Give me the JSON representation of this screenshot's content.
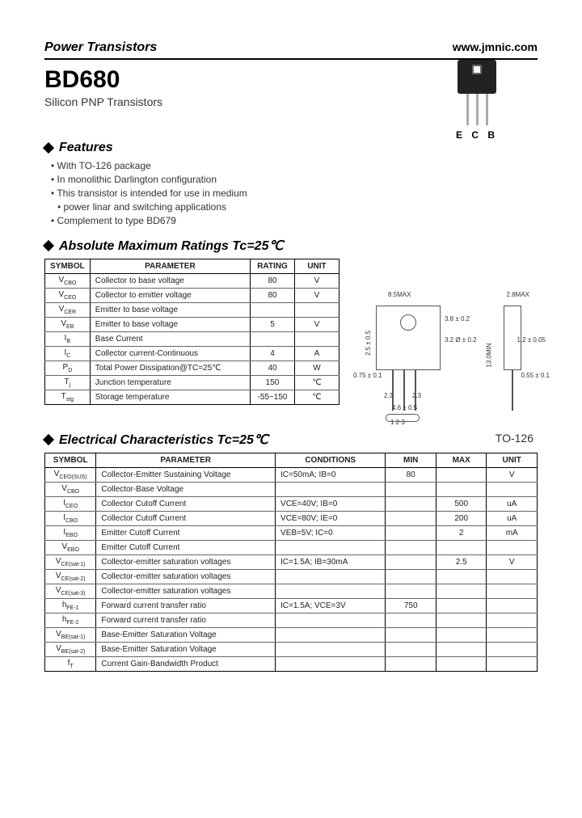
{
  "header": {
    "left": "Power Transistors",
    "right": "www.jmnic.com"
  },
  "title": {
    "part": "BD680",
    "sub": "Silicon PNP Transistors"
  },
  "package": {
    "pin_label": "E C B",
    "name": "TO-126"
  },
  "dimensions": {
    "top_front": "8.5MAX",
    "top_side": "2.8MAX",
    "h1": "3.8 ± 0.2",
    "hole": "3.2 Ø ± 0.2",
    "left": "2.5 ± 0.5",
    "len": "13.0MIN",
    "w1": "0.75 ± 0.1",
    "w2": "1.2 ± 0.05",
    "w3": "0.55 ± 0.1",
    "pitch1": "2.3",
    "pitch2": "2.3",
    "base": "4.6 ± 0.5",
    "pins": "1  2  3",
    "side_h": "1.2MAX"
  },
  "sections": {
    "features": "Features",
    "amr": "Absolute Maximum Ratings Tc=25℃",
    "ec": "Electrical Characteristics Tc=25℃"
  },
  "features": [
    "With TO-126 package",
    "In monolithic Darlington configuration",
    "This transistor is intended for use in medium",
    "power linar and switching applications",
    "Complement to type BD679"
  ],
  "amr": {
    "headers": [
      "SYMBOL",
      "PARAMETER",
      "RATING",
      "UNIT"
    ],
    "rows": [
      {
        "sym": "V",
        "sub": "CBO",
        "param": "Collector to base voltage",
        "rating": "80",
        "unit": "V"
      },
      {
        "sym": "V",
        "sub": "CEO",
        "param": "Collector to emitter voltage",
        "rating": "80",
        "unit": "V"
      },
      {
        "sym": "V",
        "sub": "CER",
        "param": "Emitter to base voltage",
        "rating": "",
        "unit": ""
      },
      {
        "sym": "V",
        "sub": "EB",
        "param": "Emitter to base voltage",
        "rating": "5",
        "unit": "V"
      },
      {
        "sym": "I",
        "sub": "B",
        "param": "Base Current",
        "rating": "",
        "unit": ""
      },
      {
        "sym": "I",
        "sub": "C",
        "param": "Collector current-Continuous",
        "rating": "4",
        "unit": "A"
      },
      {
        "sym": "P",
        "sub": "D",
        "param": "Total Power Dissipation@TC=25℃",
        "rating": "40",
        "unit": "W"
      },
      {
        "sym": "T",
        "sub": "j",
        "param": "Junction temperature",
        "rating": "150",
        "unit": "℃"
      },
      {
        "sym": "T",
        "sub": "stg",
        "param": "Storage temperature",
        "rating": "-55~150",
        "unit": "℃"
      }
    ]
  },
  "ec": {
    "headers": [
      "SYMBOL",
      "PARAMETER",
      "CONDITIONS",
      "MIN",
      "MAX",
      "UNIT"
    ],
    "rows": [
      {
        "sym": "V",
        "sub": "CEO(SUS)",
        "param": "Collector-Emitter Sustaining Voltage",
        "cond": "IC=50mA; IB=0",
        "min": "80",
        "max": "",
        "unit": "V"
      },
      {
        "sym": "V",
        "sub": "CBO",
        "param": "Collector-Base Voltage",
        "cond": "",
        "min": "",
        "max": "",
        "unit": ""
      },
      {
        "sym": "I",
        "sub": "CEO",
        "param": "Collector Cutoff Current",
        "cond": "VCE=40V; IB=0",
        "min": "",
        "max": "500",
        "unit": "uA"
      },
      {
        "sym": "I",
        "sub": "CBO",
        "param": "Collector Cutoff Current",
        "cond": "VCE=80V; IE=0",
        "min": "",
        "max": "200",
        "unit": "uA"
      },
      {
        "sym": "I",
        "sub": "EBO",
        "param": "Emitter Cutoff Current",
        "cond": "VEB=5V; IC=0",
        "min": "",
        "max": "2",
        "unit": "mA"
      },
      {
        "sym": "V",
        "sub": "EBO",
        "param": "Emitter Cutoff Current",
        "cond": "",
        "min": "",
        "max": "",
        "unit": ""
      },
      {
        "sym": "V",
        "sub": "CE(sat-1)",
        "param": "Collector-emitter saturation voltages",
        "cond": "IC=1.5A; IB=30mA",
        "min": "",
        "max": "2.5",
        "unit": "V"
      },
      {
        "sym": "V",
        "sub": "CE(sat-2)",
        "param": "Collector-emitter saturation voltages",
        "cond": "",
        "min": "",
        "max": "",
        "unit": ""
      },
      {
        "sym": "V",
        "sub": "CE(sat-3)",
        "param": "Collector-emitter saturation voltages",
        "cond": "",
        "min": "",
        "max": "",
        "unit": ""
      },
      {
        "sym": "h",
        "sub": "FE-1",
        "param": "Forward current transfer ratio",
        "cond": "IC=1.5A; VCE=3V",
        "min": "750",
        "max": "",
        "unit": ""
      },
      {
        "sym": "h",
        "sub": "FE-2",
        "param": "Forward current transfer ratio",
        "cond": "",
        "min": "",
        "max": "",
        "unit": ""
      },
      {
        "sym": "V",
        "sub": "BE(sat-1)",
        "param": "Base-Emitter Saturation Voltage",
        "cond": "",
        "min": "",
        "max": "",
        "unit": ""
      },
      {
        "sym": "V",
        "sub": "BE(sat-2)",
        "param": "Base-Emitter Saturation Voltage",
        "cond": "",
        "min": "",
        "max": "",
        "unit": ""
      },
      {
        "sym": "f",
        "sub": "T",
        "param": "Current Gain-Bandwidth Product",
        "cond": "",
        "min": "",
        "max": "",
        "unit": ""
      }
    ]
  }
}
